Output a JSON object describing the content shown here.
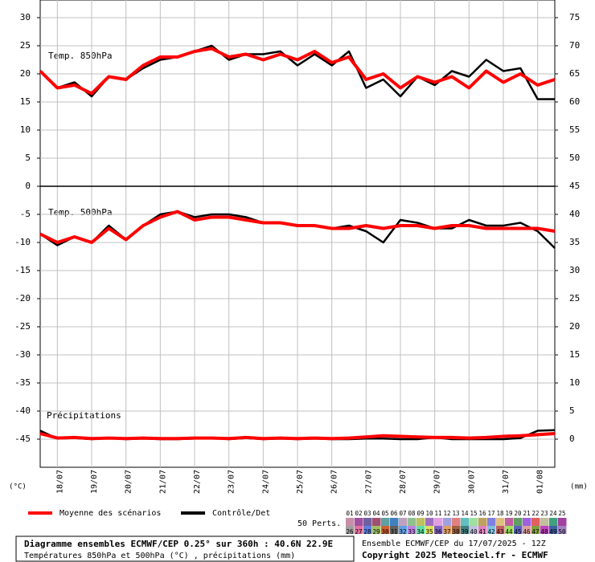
{
  "chart_data": {
    "type": "line",
    "ylabel": "(°C)",
    "y2label": "(mm)",
    "ylim": [
      -50,
      33.14
    ],
    "yticks": [
      30,
      25,
      20,
      15,
      10,
      5,
      0,
      -5,
      -10,
      -15,
      -20,
      -25,
      -30,
      -35,
      -40,
      -45
    ],
    "y2lim": [
      -5,
      78.14
    ],
    "y2ticks": [
      75,
      70,
      65,
      60,
      55,
      50,
      45,
      40,
      35,
      30,
      25,
      20,
      15,
      10,
      5,
      0
    ],
    "grid": true,
    "categories": [
      null,
      "18/07",
      null,
      "19/07",
      null,
      "20/07",
      null,
      "21/07",
      null,
      "22/07",
      null,
      "23/07",
      null,
      "24/07",
      null,
      "25/07",
      null,
      "26/07",
      null,
      "27/07",
      null,
      "28/07",
      null,
      "29/07",
      null,
      "30/07",
      null,
      "31/07",
      null,
      "01/08",
      null
    ],
    "annotations": [
      "Temp. 850hPa",
      "Temp. 500hPa",
      "Précipitations"
    ],
    "series": [
      {
        "name": "Moyenne des scénarios",
        "color": "#ff0000",
        "t850": [
          20.5,
          17.5,
          18,
          16.5,
          19.5,
          19,
          21.5,
          23,
          23,
          24,
          24.5,
          23,
          23.5,
          22.5,
          23.5,
          22.5,
          24,
          22,
          23,
          19,
          20,
          17.5,
          19.5,
          18.5,
          19.5,
          17.5,
          20.5,
          18.5,
          20,
          18,
          19
        ],
        "t500": [
          -8.5,
          -10,
          -9,
          -10,
          -7.5,
          -9.5,
          -7,
          -5.5,
          -4.5,
          -6,
          -5.5,
          -5.5,
          -6,
          -6.5,
          -6.5,
          -7,
          -7,
          -7.5,
          -7.5,
          -7,
          -7.5,
          -7,
          -7,
          -7.5,
          -7,
          -7,
          -7.5,
          -7.5,
          -7.5,
          -7.5,
          -8
        ],
        "precip": [
          1,
          0.2,
          0.3,
          0.1,
          0.2,
          0.1,
          0.2,
          0.1,
          0.1,
          0.2,
          0.2,
          0.1,
          0.3,
          0.1,
          0.2,
          0.1,
          0.2,
          0.1,
          0.2,
          0.4,
          0.6,
          0.5,
          0.4,
          0.3,
          0.3,
          0.2,
          0.3,
          0.5,
          0.6,
          0.8,
          1
        ]
      },
      {
        "name": "Contrôle/Det",
        "color": "#000000",
        "t850": [
          20.5,
          17.5,
          18.5,
          16,
          19.5,
          19,
          21,
          22.5,
          23,
          24,
          25,
          22.5,
          23.5,
          23.5,
          24,
          21.5,
          23.5,
          21.5,
          24,
          17.5,
          19,
          16,
          19.5,
          18,
          20.5,
          19.5,
          22.5,
          20.5,
          21,
          15.5,
          15.5
        ],
        "t500": [
          -8.5,
          -10.5,
          -9,
          -10,
          -7,
          -9.5,
          -7,
          -5,
          -4.5,
          -5.5,
          -5,
          -5,
          -5.5,
          -6.5,
          -6.5,
          -7,
          -7,
          -7.5,
          -7,
          -8,
          -10,
          -6,
          -6.5,
          -7.5,
          -7.5,
          -6,
          -7,
          -7,
          -6.5,
          -8,
          -11
        ],
        "precip": [
          1.5,
          0.1,
          0.2,
          0,
          0.2,
          0,
          0.1,
          0,
          0,
          0.1,
          0.2,
          0,
          0.2,
          0,
          0.1,
          0,
          0.1,
          0,
          0,
          0.1,
          0.1,
          0,
          0,
          0.3,
          0,
          0,
          0,
          0,
          0.2,
          1.5,
          1.6
        ]
      }
    ],
    "members": {
      "label": "50 Perts.",
      "items": [
        {
          "name": "01",
          "color": "#c890a8"
        },
        {
          "name": "02",
          "color": "#a050a0"
        },
        {
          "name": "03",
          "color": "#7060a0"
        },
        {
          "name": "04",
          "color": "#a05070"
        },
        {
          "name": "05",
          "color": "#60a0a0"
        },
        {
          "name": "06",
          "color": "#4080c0"
        },
        {
          "name": "07",
          "color": "#c0a0c0"
        },
        {
          "name": "08",
          "color": "#90c090"
        },
        {
          "name": "09",
          "color": "#c0c060"
        },
        {
          "name": "10",
          "color": "#a070c0"
        },
        {
          "name": "11",
          "color": "#e0a0e0"
        },
        {
          "name": "12",
          "color": "#a0a0e0"
        },
        {
          "name": "13",
          "color": "#e08080"
        },
        {
          "name": "14",
          "color": "#60c0c0"
        },
        {
          "name": "15",
          "color": "#a0e0a0"
        },
        {
          "name": "16",
          "color": "#c0a060"
        },
        {
          "name": "17",
          "color": "#8080e0"
        },
        {
          "name": "18",
          "color": "#e0c080"
        },
        {
          "name": "19",
          "color": "#c060a0"
        },
        {
          "name": "20",
          "color": "#60a060"
        },
        {
          "name": "21",
          "color": "#a060e0"
        },
        {
          "name": "22",
          "color": "#e06060"
        },
        {
          "name": "23",
          "color": "#c0c0a0"
        },
        {
          "name": "24",
          "color": "#40a080"
        },
        {
          "name": "25",
          "color": "#a040a0"
        },
        {
          "name": "26",
          "color": "#a0a0a0"
        },
        {
          "name": "27",
          "color": "#e070a0"
        },
        {
          "name": "28",
          "color": "#6080e0"
        },
        {
          "name": "29",
          "color": "#a0c060"
        },
        {
          "name": "30",
          "color": "#d06030"
        },
        {
          "name": "31",
          "color": "#606060"
        },
        {
          "name": "32",
          "color": "#60a0e0"
        },
        {
          "name": "33",
          "color": "#c080e0"
        },
        {
          "name": "34",
          "color": "#60e0a0"
        },
        {
          "name": "35",
          "color": "#e0e060"
        },
        {
          "name": "36",
          "color": "#8060c0"
        },
        {
          "name": "37",
          "color": "#e0a060"
        },
        {
          "name": "38",
          "color": "#a06040"
        },
        {
          "name": "39",
          "color": "#408080"
        },
        {
          "name": "40",
          "color": "#c0c0e0"
        },
        {
          "name": "41",
          "color": "#e080c0"
        },
        {
          "name": "42",
          "color": "#80c0e0"
        },
        {
          "name": "43",
          "color": "#c06060"
        },
        {
          "name": "44",
          "color": "#a0e060"
        },
        {
          "name": "45",
          "color": "#6060c0"
        },
        {
          "name": "46",
          "color": "#e0a0a0"
        },
        {
          "name": "47",
          "color": "#80a040"
        },
        {
          "name": "48",
          "color": "#c040c0"
        },
        {
          "name": "49",
          "color": "#4060a0"
        },
        {
          "name": "50",
          "color": "#a080c0"
        }
      ]
    },
    "footer": {
      "title": "Diagramme ensembles ECMWF/CEP 0.25° sur 360h : 40.6N 22.9E",
      "subtitle": "Températures 850hPa et 500hPa (°C) , précipitations (mm)",
      "run": "Ensemble ECMWF/CEP du 17/07/2025 - 12Z",
      "copyright": "Copyright 2025 Meteociel.fr - ECMWF"
    }
  }
}
